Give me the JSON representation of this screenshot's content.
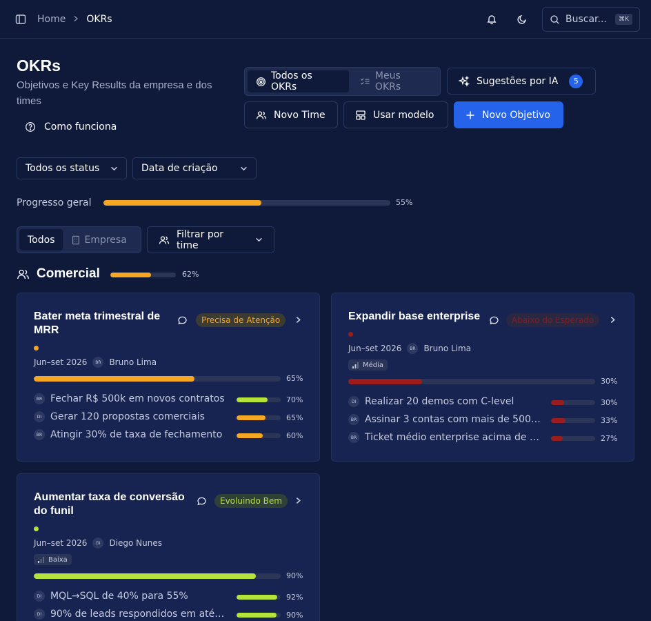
{
  "breadcrumb": {
    "home": "Home",
    "current": "OKRs"
  },
  "search": {
    "label": "Buscar...",
    "shortcut": "⌘K"
  },
  "page": {
    "title": "OKRs",
    "subtitle": "Objetivos e Key Results da empresa e dos times",
    "how_it_works": "Como funciona"
  },
  "view_toggle": {
    "all": "Todos os OKRs",
    "mine": "Meus OKRs"
  },
  "actions": {
    "ai_suggestions": "Sugestões por IA",
    "ai_count": "5",
    "new_team": "Novo Time",
    "use_template": "Usar modelo",
    "new_objective": "Novo Objetivo"
  },
  "filters": {
    "status": "Todos os status",
    "sort": "Data de criação",
    "team_filter": "Filtrar por time"
  },
  "overall": {
    "label": "Progresso geral",
    "percent_text": "55%",
    "value": 0.55
  },
  "scope_tabs": {
    "all": "Todos",
    "company": "Empresa"
  },
  "section": {
    "name": "Comercial",
    "percent_text": "62%",
    "value": 0.62
  },
  "colors": {
    "orange": "#f5a623",
    "green": "#b5e33c",
    "red": "#9b1c1c",
    "accent": "#2563eb"
  },
  "objectives": [
    {
      "title": "Bater meta trimestral de MRR",
      "status": "Precisa de Atenção",
      "period": "Jun–set 2026",
      "owner_initials": "BR",
      "owner": "Bruno Lima",
      "priority": "",
      "percent_text": "65%",
      "value": 0.65,
      "krs": [
        {
          "initials": "BR",
          "text": "Fechar R$ 500k em novos contratos",
          "percent_text": "70%",
          "value": 0.7,
          "color": "#b5e33c"
        },
        {
          "initials": "DI",
          "text": "Gerar 120 propostas comerciais",
          "percent_text": "65%",
          "value": 0.65,
          "color": "#f5a623"
        },
        {
          "initials": "BR",
          "text": "Atingir 30% de taxa de fechamento",
          "percent_text": "60%",
          "value": 0.6,
          "color": "#f5a623"
        }
      ]
    },
    {
      "title": "Expandir base enterprise",
      "status": "Abaixo do Esperado",
      "period": "Jun–set 2026",
      "owner_initials": "BR",
      "owner": "Bruno Lima",
      "priority": "Média",
      "percent_text": "30%",
      "value": 0.3,
      "krs": [
        {
          "initials": "DI",
          "text": "Realizar 20 demos com C-level",
          "percent_text": "30%",
          "value": 0.3,
          "color": "#9b1c1c"
        },
        {
          "initials": "BR",
          "text": "Assinar 3 contas com mais de 500 ...",
          "percent_text": "33%",
          "value": 0.33,
          "color": "#9b1c1c"
        },
        {
          "initials": "BR",
          "text": "Ticket médio enterprise acima de R...",
          "percent_text": "27%",
          "value": 0.27,
          "color": "#9b1c1c"
        }
      ]
    },
    {
      "title": "Aumentar taxa de conversão do funil",
      "status": "Evoluindo Bem",
      "period": "Jun–set 2026",
      "owner_initials": "DI",
      "owner": "Diego Nunes",
      "priority": "Baixa",
      "percent_text": "90%",
      "value": 0.9,
      "krs": [
        {
          "initials": "DI",
          "text": "MQL→SQL de 40% para 55%",
          "percent_text": "92%",
          "value": 0.92,
          "color": "#b5e33c"
        },
        {
          "initials": "DI",
          "text": "90% de leads respondidos em até 1h",
          "percent_text": "90%",
          "value": 0.9,
          "color": "#b5e33c"
        }
      ]
    }
  ]
}
